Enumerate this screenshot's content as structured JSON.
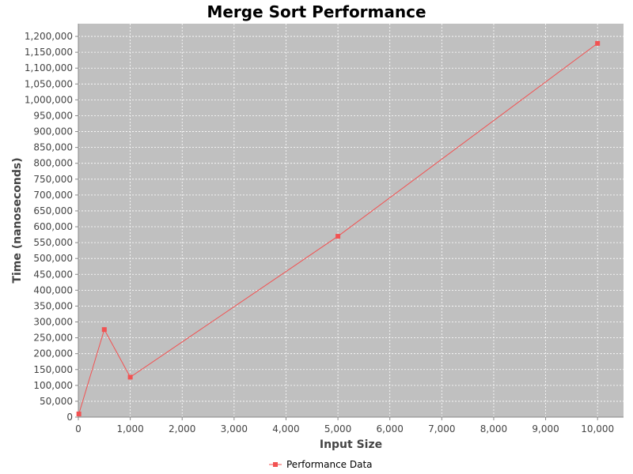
{
  "chart_data": {
    "type": "line",
    "title": "Merge Sort Performance",
    "xlabel": "Input Size",
    "ylabel": "Time (nanoseconds)",
    "xlim": [
      0,
      10500
    ],
    "ylim": [
      0,
      1240000
    ],
    "x_ticks": [
      0,
      1000,
      2000,
      3000,
      4000,
      5000,
      6000,
      7000,
      8000,
      9000,
      10000
    ],
    "x_tick_labels": [
      "0",
      "1,000",
      "2,000",
      "3,000",
      "4,000",
      "5,000",
      "6,000",
      "7,000",
      "8,000",
      "9,000",
      "10,000"
    ],
    "y_ticks": [
      0,
      50000,
      100000,
      150000,
      200000,
      250000,
      300000,
      350000,
      400000,
      450000,
      500000,
      550000,
      600000,
      650000,
      700000,
      750000,
      800000,
      850000,
      900000,
      950000,
      1000000,
      1050000,
      1100000,
      1150000,
      1200000
    ],
    "y_tick_labels": [
      "0",
      "50,000",
      "100,000",
      "150,000",
      "200,000",
      "250,000",
      "300,000",
      "350,000",
      "400,000",
      "450,000",
      "500,000",
      "550,000",
      "600,000",
      "650,000",
      "700,000",
      "750,000",
      "800,000",
      "850,000",
      "900,000",
      "950,000",
      "1,000,000",
      "1,050,000",
      "1,100,000",
      "1,150,000",
      "1,200,000"
    ],
    "grid": true,
    "legend_position": "bottom-center",
    "series": [
      {
        "name": "Performance Data",
        "color": "#f25252",
        "marker": "square",
        "x": [
          10,
          500,
          1000,
          5000,
          10000
        ],
        "y": [
          10000,
          276000,
          126000,
          570000,
          1178000
        ]
      }
    ]
  },
  "colors": {
    "plot_background": "#c0c0c0",
    "grid": "#ffffff",
    "series": "#f25252"
  }
}
